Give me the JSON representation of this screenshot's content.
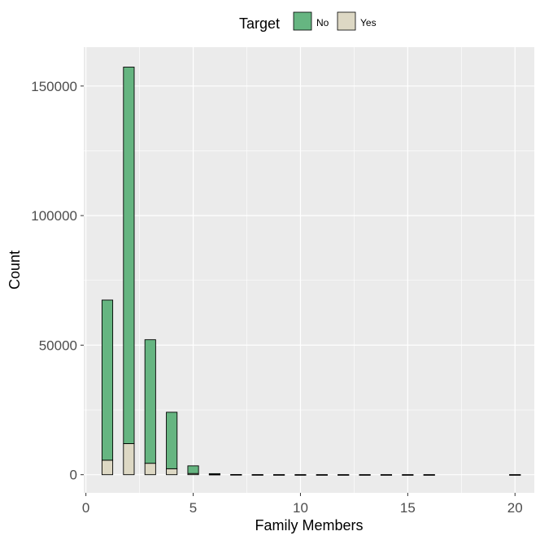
{
  "chart_data": {
    "type": "bar",
    "stacked": true,
    "xlabel": "Family Members",
    "ylabel": "Count",
    "xlim": [
      -0.1,
      20.9
    ],
    "ylim": [
      -7000,
      165000
    ],
    "x_ticks": [
      0,
      5,
      10,
      15,
      20
    ],
    "y_ticks": [
      0,
      50000,
      100000,
      150000
    ],
    "x_tick_labels": [
      "0",
      "5",
      "10",
      "15",
      "20"
    ],
    "y_tick_labels": [
      "0",
      "50000",
      "100000",
      "150000"
    ],
    "grid": true,
    "legend": {
      "title": "Target",
      "position": "top"
    },
    "x": [
      1,
      2,
      3,
      4,
      5,
      6,
      7,
      8,
      9,
      10,
      11,
      12,
      13,
      14,
      15,
      16,
      20
    ],
    "series": [
      {
        "name": "Yes",
        "color": "#ddd8c4",
        "values": [
          5600,
          12000,
          4400,
          2300,
          460,
          90,
          15,
          5,
          2,
          1,
          0,
          0,
          0,
          0,
          0,
          0,
          0
        ]
      },
      {
        "name": "No",
        "color": "#66b581",
        "values": [
          61800,
          145300,
          47700,
          21800,
          2950,
          320,
          65,
          15,
          5,
          2,
          1,
          1,
          0,
          0,
          0,
          0,
          1
        ]
      }
    ]
  }
}
